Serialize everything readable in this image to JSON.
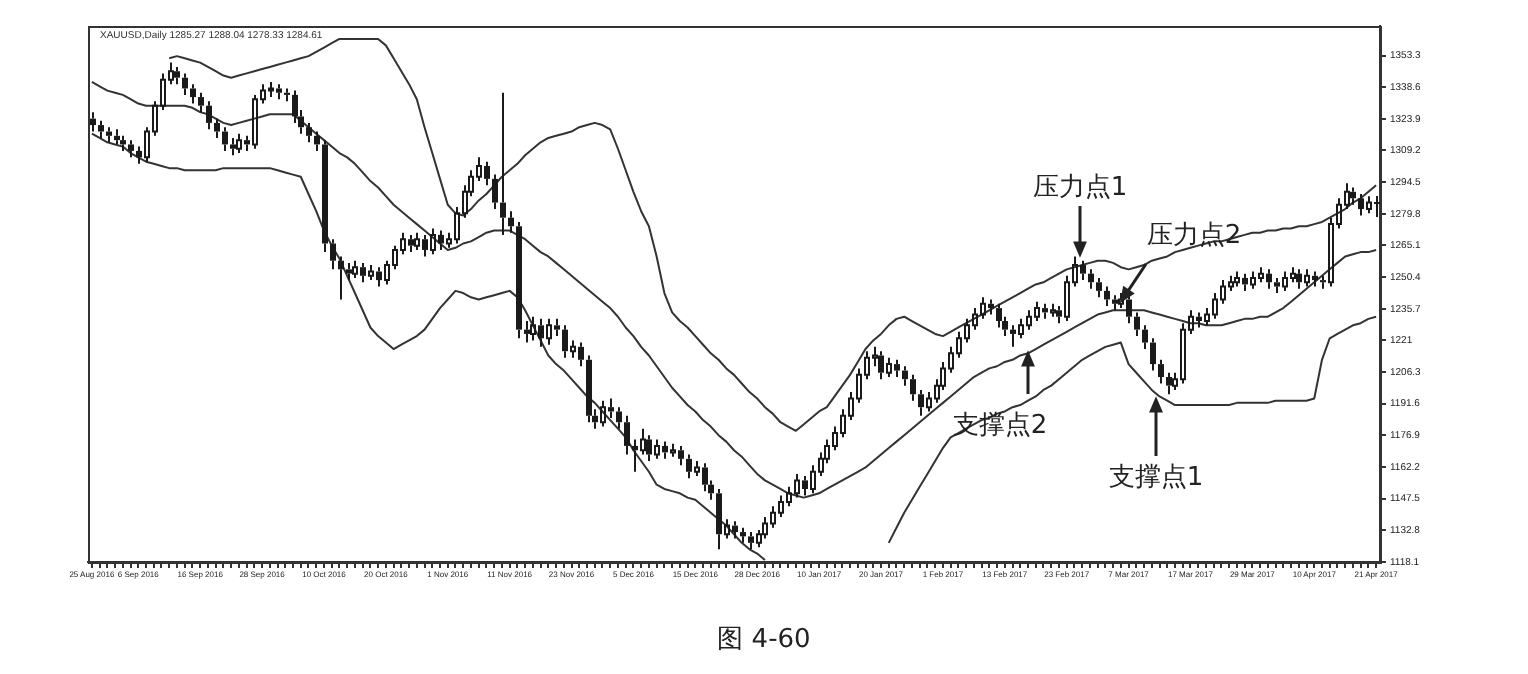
{
  "chart_data": {
    "type": "candlestick",
    "title": "XAUUSD,Daily 1285.27 1288.04 1278.33 1284.61",
    "categories": [
      "25 Aug 2016",
      null,
      null,
      null,
      null,
      null,
      "6 Sep 2016",
      null,
      null,
      null,
      null,
      null,
      null,
      null,
      "16 Sep 2016",
      null,
      null,
      null,
      null,
      null,
      null,
      null,
      "28 Sep 2016",
      null,
      null,
      null,
      null,
      null,
      null,
      null,
      "10 Oct 2016",
      null,
      null,
      null,
      null,
      null,
      null,
      null,
      "20 Oct 2016",
      null,
      null,
      null,
      null,
      null,
      null,
      null,
      "1 Nov 2016",
      null,
      null,
      null,
      null,
      null,
      null,
      null,
      "11 Nov 2016",
      null,
      null,
      null,
      null,
      null,
      null,
      null,
      "23 Nov 2016",
      null,
      null,
      null,
      null,
      null,
      null,
      null,
      "5 Dec 2016",
      null,
      null,
      null,
      null,
      null,
      null,
      null,
      "15 Dec 2016",
      null,
      null,
      null,
      null,
      null,
      null,
      null,
      "28 Dec 2016",
      null,
      null,
      null,
      null,
      null,
      null,
      null,
      "10 Jan 2017",
      null,
      null,
      null,
      null,
      null,
      null,
      null,
      "20 Jan 2017",
      null,
      null,
      null,
      null,
      null,
      null,
      null,
      "1 Feb 2017",
      null,
      null,
      null,
      null,
      null,
      null,
      null,
      "13 Feb 2017",
      null,
      null,
      null,
      null,
      null,
      null,
      null,
      "23 Feb 2017",
      null,
      null,
      null,
      null,
      null,
      null,
      null,
      "7 Mar 2017",
      null,
      null,
      null,
      null,
      null,
      null,
      null,
      "17 Mar 2017",
      null,
      null,
      null,
      null,
      null,
      null,
      null,
      "29 Mar 2017",
      null,
      null,
      null,
      null,
      null,
      null,
      null,
      "10 Apr 2017",
      null,
      null,
      null,
      null,
      null,
      null,
      null,
      "21 Apr 2017"
    ],
    "series": [
      {
        "color": "#1a1a1a",
        "ohlc": [
          [
            1324,
            1327,
            1318,
            1321
          ],
          [
            1321,
            1323,
            1315,
            1318
          ],
          [
            1318,
            1320,
            1313,
            1316
          ],
          [
            1316,
            1319,
            1312,
            1314
          ],
          [
            1314,
            1316,
            1309,
            1312
          ],
          [
            1312,
            1314,
            1306,
            1309
          ],
          [
            1309,
            1311,
            1303,
            1306
          ],
          [
            1306,
            1320,
            1304,
            1318
          ],
          [
            1318,
            1332,
            1316,
            1330
          ],
          [
            1330,
            1345,
            1328,
            1342
          ],
          [
            1342,
            1350,
            1340,
            1346
          ],
          [
            1346,
            1348,
            1340,
            1343
          ],
          [
            1343,
            1345,
            1335,
            1338
          ],
          [
            1338,
            1340,
            1331,
            1334
          ],
          [
            1334,
            1336,
            1327,
            1330
          ],
          [
            1330,
            1332,
            1319,
            1322
          ],
          [
            1322,
            1324,
            1315,
            1318
          ],
          [
            1318,
            1320,
            1309,
            1312
          ],
          [
            1312,
            1315,
            1307,
            1310
          ],
          [
            1310,
            1317,
            1308,
            1314
          ],
          [
            1314,
            1316,
            1309,
            1312
          ],
          [
            1312,
            1335,
            1310,
            1333
          ],
          [
            1333,
            1340,
            1331,
            1337
          ],
          [
            1337,
            1341,
            1334,
            1338
          ],
          [
            1338,
            1340,
            1333,
            1336
          ],
          [
            1336,
            1338,
            1332,
            1335
          ],
          [
            1335,
            1337,
            1322,
            1325
          ],
          [
            1325,
            1328,
            1317,
            1320
          ],
          [
            1320,
            1322,
            1313,
            1316
          ],
          [
            1316,
            1318,
            1309,
            1312
          ],
          [
            1312,
            1314,
            1262,
            1266
          ],
          [
            1266,
            1268,
            1254,
            1258
          ],
          [
            1258,
            1260,
            1240,
            1254
          ],
          [
            1254,
            1257,
            1249,
            1252
          ],
          [
            1252,
            1258,
            1250,
            1255
          ],
          [
            1255,
            1257,
            1248,
            1251
          ],
          [
            1251,
            1256,
            1249,
            1253
          ],
          [
            1253,
            1255,
            1246,
            1249
          ],
          [
            1249,
            1258,
            1247,
            1256
          ],
          [
            1256,
            1265,
            1254,
            1263
          ],
          [
            1263,
            1271,
            1261,
            1268
          ],
          [
            1268,
            1270,
            1262,
            1265
          ],
          [
            1265,
            1271,
            1263,
            1268
          ],
          [
            1268,
            1270,
            1260,
            1263
          ],
          [
            1263,
            1273,
            1261,
            1270
          ],
          [
            1270,
            1272,
            1263,
            1266
          ],
          [
            1266,
            1271,
            1264,
            1268
          ],
          [
            1268,
            1283,
            1266,
            1280
          ],
          [
            1280,
            1293,
            1278,
            1290
          ],
          [
            1290,
            1300,
            1288,
            1297
          ],
          [
            1297,
            1306,
            1295,
            1302
          ],
          [
            1302,
            1304,
            1293,
            1296
          ],
          [
            1296,
            1298,
            1282,
            1285
          ],
          [
            1285,
            1336,
            1270,
            1278
          ],
          [
            1278,
            1281,
            1271,
            1274
          ],
          [
            1274,
            1276,
            1222,
            1226
          ],
          [
            1226,
            1230,
            1220,
            1224
          ],
          [
            1224,
            1232,
            1221,
            1228
          ],
          [
            1228,
            1231,
            1218,
            1222
          ],
          [
            1222,
            1231,
            1219,
            1228
          ],
          [
            1228,
            1231,
            1223,
            1226
          ],
          [
            1226,
            1228,
            1213,
            1216
          ],
          [
            1216,
            1221,
            1213,
            1218
          ],
          [
            1218,
            1220,
            1209,
            1212
          ],
          [
            1212,
            1214,
            1183,
            1186
          ],
          [
            1186,
            1189,
            1180,
            1183
          ],
          [
            1183,
            1193,
            1181,
            1190
          ],
          [
            1190,
            1194,
            1185,
            1188
          ],
          [
            1188,
            1190,
            1180,
            1183
          ],
          [
            1183,
            1186,
            1168,
            1172
          ],
          [
            1172,
            1175,
            1160,
            1170
          ],
          [
            1170,
            1180,
            1168,
            1175
          ],
          [
            1175,
            1177,
            1165,
            1168
          ],
          [
            1168,
            1175,
            1166,
            1172
          ],
          [
            1172,
            1174,
            1166,
            1169
          ],
          [
            1169,
            1173,
            1167,
            1170
          ],
          [
            1170,
            1172,
            1163,
            1166
          ],
          [
            1166,
            1168,
            1157,
            1160
          ],
          [
            1160,
            1165,
            1158,
            1162
          ],
          [
            1162,
            1164,
            1151,
            1154
          ],
          [
            1154,
            1156,
            1147,
            1150
          ],
          [
            1150,
            1152,
            1124,
            1131
          ],
          [
            1131,
            1138,
            1129,
            1135
          ],
          [
            1135,
            1137,
            1129,
            1132
          ],
          [
            1132,
            1134,
            1127,
            1130
          ],
          [
            1130,
            1132,
            1124,
            1127
          ],
          [
            1127,
            1133,
            1125,
            1131
          ],
          [
            1131,
            1139,
            1129,
            1136
          ],
          [
            1136,
            1144,
            1134,
            1141
          ],
          [
            1141,
            1149,
            1139,
            1146
          ],
          [
            1146,
            1153,
            1144,
            1150
          ],
          [
            1150,
            1159,
            1148,
            1156
          ],
          [
            1156,
            1158,
            1149,
            1152
          ],
          [
            1152,
            1163,
            1150,
            1160
          ],
          [
            1160,
            1169,
            1158,
            1166
          ],
          [
            1166,
            1175,
            1164,
            1172
          ],
          [
            1172,
            1181,
            1170,
            1178
          ],
          [
            1178,
            1189,
            1176,
            1186
          ],
          [
            1186,
            1197,
            1184,
            1194
          ],
          [
            1194,
            1208,
            1192,
            1205
          ],
          [
            1205,
            1216,
            1203,
            1213
          ],
          [
            1213,
            1218,
            1209,
            1214
          ],
          [
            1214,
            1216,
            1203,
            1206
          ],
          [
            1206,
            1213,
            1204,
            1210
          ],
          [
            1210,
            1212,
            1204,
            1207
          ],
          [
            1207,
            1209,
            1200,
            1203
          ],
          [
            1203,
            1205,
            1193,
            1196
          ],
          [
            1196,
            1198,
            1186,
            1190
          ],
          [
            1190,
            1197,
            1188,
            1194
          ],
          [
            1194,
            1203,
            1192,
            1200
          ],
          [
            1200,
            1211,
            1198,
            1208
          ],
          [
            1208,
            1218,
            1206,
            1215
          ],
          [
            1215,
            1225,
            1213,
            1222
          ],
          [
            1222,
            1231,
            1220,
            1228
          ],
          [
            1228,
            1236,
            1226,
            1233
          ],
          [
            1233,
            1241,
            1231,
            1238
          ],
          [
            1238,
            1240,
            1233,
            1236
          ],
          [
            1236,
            1238,
            1227,
            1230
          ],
          [
            1230,
            1232,
            1223,
            1226
          ],
          [
            1226,
            1228,
            1218,
            1224
          ],
          [
            1224,
            1231,
            1222,
            1228
          ],
          [
            1228,
            1235,
            1226,
            1232
          ],
          [
            1232,
            1239,
            1230,
            1236
          ],
          [
            1236,
            1238,
            1231,
            1234
          ],
          [
            1234,
            1238,
            1232,
            1235
          ],
          [
            1235,
            1237,
            1229,
            1232
          ],
          [
            1232,
            1251,
            1230,
            1248
          ],
          [
            1248,
            1260,
            1246,
            1256
          ],
          [
            1256,
            1258,
            1249,
            1252
          ],
          [
            1252,
            1254,
            1245,
            1248
          ],
          [
            1248,
            1250,
            1241,
            1244
          ],
          [
            1244,
            1246,
            1237,
            1240
          ],
          [
            1240,
            1242,
            1235,
            1238
          ],
          [
            1238,
            1243,
            1236,
            1240
          ],
          [
            1240,
            1242,
            1229,
            1232
          ],
          [
            1232,
            1234,
            1223,
            1226
          ],
          [
            1226,
            1228,
            1217,
            1220
          ],
          [
            1220,
            1222,
            1207,
            1210
          ],
          [
            1210,
            1212,
            1201,
            1204
          ],
          [
            1204,
            1206,
            1196,
            1200
          ],
          [
            1200,
            1206,
            1198,
            1203
          ],
          [
            1203,
            1229,
            1201,
            1226
          ],
          [
            1226,
            1235,
            1224,
            1232
          ],
          [
            1232,
            1234,
            1227,
            1230
          ],
          [
            1230,
            1236,
            1228,
            1233
          ],
          [
            1233,
            1243,
            1231,
            1240
          ],
          [
            1240,
            1249,
            1238,
            1246
          ],
          [
            1246,
            1251,
            1244,
            1248
          ],
          [
            1248,
            1253,
            1246,
            1250
          ],
          [
            1250,
            1252,
            1244,
            1247
          ],
          [
            1247,
            1253,
            1245,
            1250
          ],
          [
            1250,
            1255,
            1248,
            1252
          ],
          [
            1252,
            1254,
            1245,
            1248
          ],
          [
            1248,
            1250,
            1243,
            1246
          ],
          [
            1246,
            1253,
            1244,
            1250
          ],
          [
            1250,
            1255,
            1248,
            1252
          ],
          [
            1252,
            1254,
            1245,
            1248
          ],
          [
            1248,
            1254,
            1246,
            1251
          ],
          [
            1251,
            1253,
            1246,
            1249
          ],
          [
            1249,
            1251,
            1245,
            1248
          ],
          [
            1248,
            1278,
            1246,
            1275
          ],
          [
            1275,
            1287,
            1273,
            1284
          ],
          [
            1284,
            1294,
            1282,
            1290
          ],
          [
            1290,
            1292,
            1284,
            1287
          ],
          [
            1287,
            1289,
            1279,
            1282
          ],
          [
            1282,
            1288,
            1280,
            1285
          ],
          [
            1285.27,
            1288.04,
            1278.33,
            1284.61
          ]
        ]
      },
      {
        "type": "line",
        "color": "#333333",
        "values": [
          null,
          null,
          null,
          null,
          null,
          null,
          null,
          null,
          null,
          null,
          1352,
          1353,
          1352,
          1351,
          1350,
          1348,
          1346,
          1344,
          1343,
          1344,
          1345,
          1346,
          1347,
          1348,
          1349,
          1350,
          1351,
          1352,
          1353,
          1355,
          1357,
          1359,
          1361,
          1361,
          1361,
          1361,
          1361,
          1361,
          1358,
          1352,
          1346,
          1340,
          1333,
          1320,
          1308,
          1296,
          1284,
          1280,
          1279,
          1282,
          1286,
          1289,
          1293,
          1297,
          1300,
          1303,
          1307,
          1310,
          1313,
          1315,
          1316,
          1317,
          1318,
          1320,
          1321,
          1322,
          1321,
          1319,
          1310,
          1300,
          1290,
          1281,
          1274,
          1260,
          1243,
          1234,
          1230,
          1227,
          1223,
          1219,
          1215,
          1212,
          1208,
          1205,
          1201,
          1197,
          1194,
          1190,
          1187,
          1183,
          1181,
          1179,
          1182,
          1185,
          1188,
          1190,
          1195,
          1200,
          1205,
          1211,
          1217,
          1221,
          1224,
          1228,
          1231,
          1232,
          1230,
          1228,
          1226,
          1224,
          1223,
          1225,
          1227,
          1229,
          1231,
          1233,
          1235,
          1237,
          1239,
          1241,
          1243,
          1245,
          1247,
          1248,
          1250,
          1252,
          1254,
          1255,
          1256,
          1257,
          1258,
          1258,
          1257,
          1255,
          1254,
          1255,
          1256,
          1258,
          1259,
          1260,
          1262,
          1263,
          1264,
          1265,
          1266,
          1267,
          1267,
          1268,
          1269,
          1270,
          1271,
          1271,
          1272,
          1272,
          1273,
          1273,
          1274,
          1274,
          1275,
          1276,
          1278,
          1280,
          1282,
          1285,
          1287,
          1290,
          1293
        ]
      },
      {
        "type": "line",
        "color": "#333333",
        "values": [
          1341,
          1339,
          1337,
          1336,
          1335,
          1333,
          1331,
          1330,
          1330,
          1330,
          1330,
          1330,
          1330,
          1329,
          1327,
          1326,
          1324,
          1322,
          1321,
          1322,
          1323,
          1324,
          1325,
          1326,
          1326,
          1326,
          1326,
          1323,
          1320,
          1317,
          1314,
          1311,
          1308,
          1306,
          1303,
          1299,
          1295,
          1292,
          1288,
          1284,
          1281,
          1278,
          1275,
          1272,
          1269,
          1266,
          1263,
          1264,
          1266,
          1267,
          1269,
          1271,
          1272,
          1272,
          1272,
          1270,
          1268,
          1265,
          1262,
          1260,
          1257,
          1254,
          1251,
          1248,
          1245,
          1242,
          1239,
          1236,
          1232,
          1227,
          1223,
          1218,
          1214,
          1209,
          1204,
          1199,
          1195,
          1191,
          1188,
          1184,
          1181,
          1177,
          1174,
          1170,
          1167,
          1163,
          1159,
          1156,
          1154,
          1152,
          1150,
          1149,
          1148,
          1149,
          1150,
          1152,
          1154,
          1156,
          1158,
          1160,
          1162,
          1165,
          1168,
          1171,
          1174,
          1177,
          1180,
          1183,
          1186,
          1189,
          1192,
          1195,
          1198,
          1201,
          1204,
          1206,
          1208,
          1209,
          1211,
          1212,
          1214,
          1215,
          1217,
          1219,
          1221,
          1223,
          1225,
          1227,
          1229,
          1231,
          1233,
          1234,
          1235,
          1235,
          1235,
          1235,
          1235,
          1234,
          1233,
          1232,
          1231,
          1230,
          1229,
          1229,
          1228,
          1228,
          1228,
          1229,
          1230,
          1231,
          1231,
          1232,
          1232,
          1234,
          1236,
          1239,
          1242,
          1245,
          1248,
          1251,
          1254,
          1257,
          1260,
          1261,
          1262,
          1262,
          1263
        ]
      },
      {
        "type": "line",
        "color": "#333333",
        "values": [
          1317,
          1315,
          1313,
          1312,
          1311,
          1308,
          1306,
          1304,
          1303,
          1302,
          1301,
          1301,
          1300,
          1300,
          1300,
          1300,
          1300,
          1301,
          1301,
          1301,
          1301,
          1301,
          1301,
          1301,
          1300,
          1299,
          1298,
          1297,
          1289,
          1281,
          1272,
          1265,
          1259,
          1251,
          1243,
          1235,
          1227,
          1223,
          1220,
          1217,
          1219,
          1221,
          1223,
          1226,
          1231,
          1236,
          1240,
          1244,
          1243,
          1241,
          1240,
          1241,
          1242,
          1243,
          1244,
          1241,
          1235,
          1228,
          1221,
          1214,
          1210,
          1207,
          1203,
          1199,
          1195,
          1192,
          1188,
          1184,
          1180,
          1176,
          1170,
          1165,
          1160,
          1154,
          1152,
          1151,
          1150,
          1148,
          1147,
          1144,
          1141,
          1138,
          1135,
          1131,
          1127,
          1124,
          1122,
          1119,
          null,
          null,
          null,
          null,
          null,
          null,
          null,
          null,
          null,
          null,
          null,
          null,
          null,
          null,
          null,
          1127,
          1134,
          1141,
          1147,
          1153,
          1159,
          1165,
          1171,
          1176,
          1178,
          1180,
          1182,
          1184,
          1185,
          1187,
          1188,
          1190,
          1191,
          1193,
          1195,
          1198,
          1200,
          1203,
          1206,
          1209,
          1212,
          1214,
          1216,
          1218,
          1219,
          1220,
          1210,
          1206,
          1202,
          1198,
          1195,
          1193,
          1191,
          1191,
          1191,
          1191,
          1191,
          1191,
          1191,
          1191,
          1192,
          1192,
          1192,
          1192,
          1192,
          1193,
          1193,
          1193,
          1193,
          1193,
          1194,
          1212,
          1222,
          1224,
          1226,
          1228,
          1229,
          1231,
          1232
        ]
      }
    ],
    "ylim": [
      1118.1,
      1367
    ],
    "yticks": [
      1118.1,
      1132.8,
      1147.5,
      1162.2,
      1176.9,
      1191.6,
      1206.3,
      1221,
      1235.7,
      1250.4,
      1265.1,
      1279.8,
      1294.5,
      1309.2,
      1323.9,
      1338.6,
      1353.3
    ],
    "annotations": [
      {
        "text": "压力点1",
        "y": 1261
      },
      "压力点2",
      {
        "text": "支撑点2",
        "y": 1215
      },
      {
        "text": "支撑点1",
        "y": 1193
      },
      "图 4-60"
    ]
  }
}
